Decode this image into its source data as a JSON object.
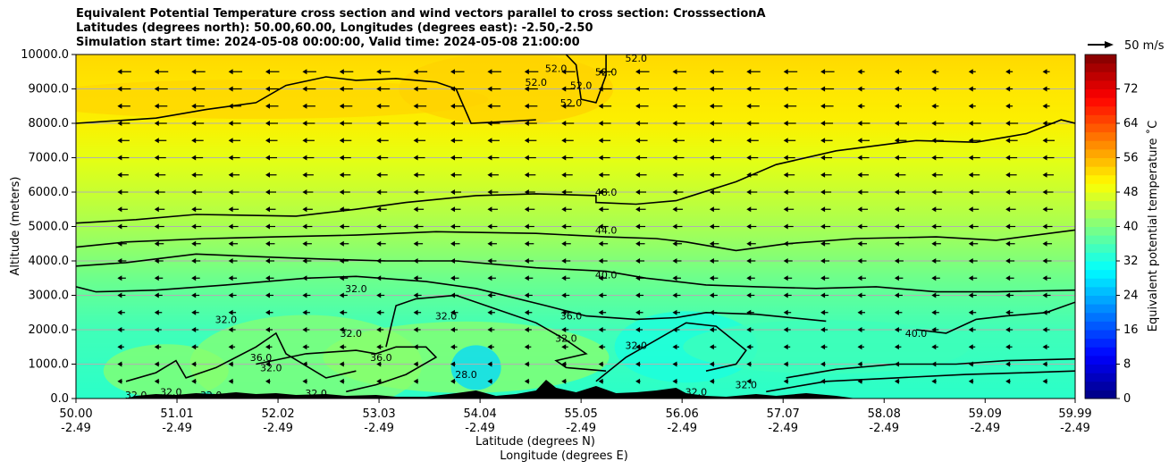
{
  "chart_data": {
    "type": "heatmap",
    "title_lines": [
      "Equivalent Potential Temperature cross section and wind vectors parallel to cross section: CrosssectionA",
      "Latitudes (degrees north): 50.00,60.00, Longitudes (degrees east): -2.50,-2.50",
      "Simulation start time: 2024-05-08 00:00:00, Valid time: 2024-05-08 21:00:00"
    ],
    "xlabel_lines": [
      "Latitude (degrees N)",
      "Longitude (degrees E)"
    ],
    "ylabel": "Altitude (meters)",
    "x_ticks": [
      {
        "lat": "50.00",
        "lon": "-2.49"
      },
      {
        "lat": "51.01",
        "lon": "-2.49"
      },
      {
        "lat": "52.02",
        "lon": "-2.49"
      },
      {
        "lat": "53.03",
        "lon": "-2.49"
      },
      {
        "lat": "54.04",
        "lon": "-2.49"
      },
      {
        "lat": "55.05",
        "lon": "-2.49"
      },
      {
        "lat": "56.06",
        "lon": "-2.49"
      },
      {
        "lat": "57.07",
        "lon": "-2.49"
      },
      {
        "lat": "58.08",
        "lon": "-2.49"
      },
      {
        "lat": "59.09",
        "lon": "-2.49"
      },
      {
        "lat": "59.99",
        "lon": "-2.49"
      }
    ],
    "xlim": [
      50.0,
      59.99
    ],
    "y_ticks": [
      "0.0",
      "1000.0",
      "2000.0",
      "3000.0",
      "4000.0",
      "5000.0",
      "6000.0",
      "7000.0",
      "8000.0",
      "9000.0",
      "10000.0"
    ],
    "ylim": [
      0,
      10000
    ],
    "grid": "horizontal",
    "colorbar": {
      "label": "Equivalent potential temperature ˚C",
      "ticks": [
        "0",
        "8",
        "16",
        "24",
        "32",
        "40",
        "48",
        "56",
        "64",
        "72"
      ],
      "range": [
        0,
        80
      ],
      "colormap": "jet"
    },
    "quiver_key": "50 m/s",
    "contours": [
      {
        "level": "28.0",
        "lat": 53.9,
        "alt": 700
      },
      {
        "level": "32.0",
        "lat": 50.6,
        "alt": 100
      },
      {
        "level": "32.0",
        "lat": 50.95,
        "alt": 200
      },
      {
        "level": "32.0",
        "lat": 51.35,
        "alt": 100
      },
      {
        "level": "32.0",
        "lat": 51.5,
        "alt": 2300
      },
      {
        "level": "32.0",
        "lat": 51.95,
        "alt": 900
      },
      {
        "level": "32.0",
        "lat": 52.4,
        "alt": 150
      },
      {
        "level": "32.0",
        "lat": 52.8,
        "alt": 3200
      },
      {
        "level": "32.0",
        "lat": 52.75,
        "alt": 1900
      },
      {
        "level": "32.0",
        "lat": 53.7,
        "alt": 2400
      },
      {
        "level": "32.0",
        "lat": 54.9,
        "alt": 1750
      },
      {
        "level": "32.0",
        "lat": 55.6,
        "alt": 1550
      },
      {
        "level": "32.0",
        "lat": 56.2,
        "alt": 200
      },
      {
        "level": "32.0",
        "lat": 56.7,
        "alt": 400
      },
      {
        "level": "36.0",
        "lat": 51.85,
        "alt": 1200
      },
      {
        "level": "36.0",
        "lat": 53.05,
        "alt": 1200
      },
      {
        "level": "36.0",
        "lat": 54.95,
        "alt": 2400
      },
      {
        "level": "40.0",
        "lat": 55.3,
        "alt": 3600
      },
      {
        "level": "40.0",
        "lat": 58.4,
        "alt": 1900
      },
      {
        "level": "44.0",
        "lat": 55.3,
        "alt": 4900
      },
      {
        "level": "48.0",
        "lat": 55.3,
        "alt": 6000
      },
      {
        "level": "52.0",
        "lat": 54.6,
        "alt": 9200
      },
      {
        "level": "52.0",
        "lat": 54.8,
        "alt": 9600
      },
      {
        "level": "52.0",
        "lat": 55.05,
        "alt": 9100
      },
      {
        "level": "52.0",
        "lat": 55.3,
        "alt": 9500
      },
      {
        "level": "52.0",
        "lat": 54.95,
        "alt": 8600
      },
      {
        "level": "52.0",
        "lat": 55.6,
        "alt": 9900
      }
    ],
    "wind_direction": "northward-to-southward (pointing toward lower latitude)"
  }
}
